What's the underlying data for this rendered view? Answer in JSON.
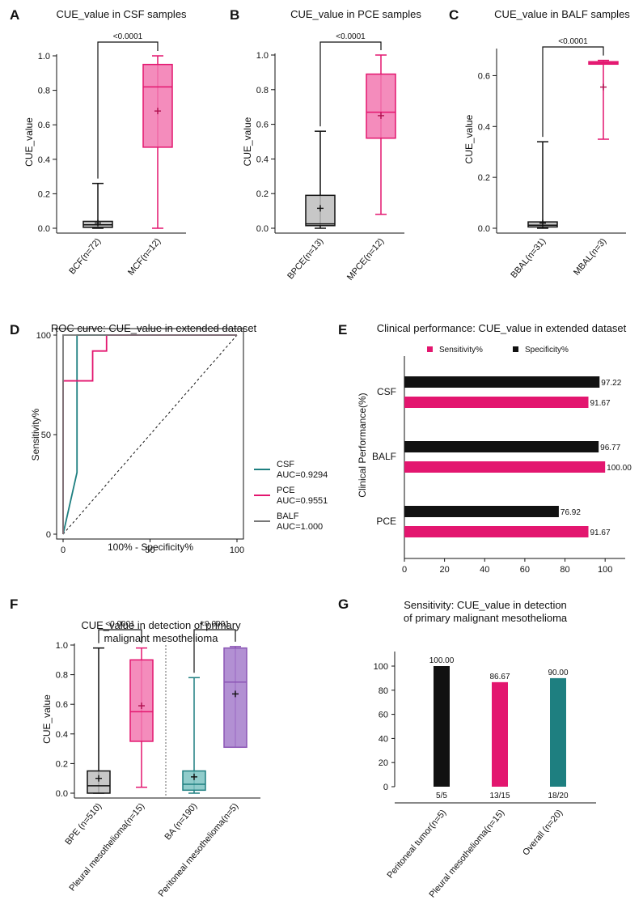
{
  "colors": {
    "pink": "#e3166f",
    "black": "#111111",
    "teal": "#1e7f80",
    "purple": "#8b55b5",
    "gray": "#777777",
    "pinkFill": "#f278b0",
    "purpleFill": "#a47ccb",
    "tealFill": "#7cc3c2"
  },
  "chart_data": [
    {
      "panel": "A",
      "type": "box",
      "title": "CUE_value in CSF samples",
      "ylabel": "CUE_value",
      "ylim": [
        0,
        1.0
      ],
      "yticks": [
        "0.0",
        "0.2",
        "0.4",
        "0.6",
        "0.8",
        "1.0"
      ],
      "categories": [
        "BCF(n=72)",
        "MCF(n=12)"
      ],
      "boxes": [
        {
          "min": 0,
          "q1": 0.005,
          "median": 0.02,
          "q3": 0.04,
          "max": 0.26,
          "mean": 0.03,
          "color": "black"
        },
        {
          "min": 0,
          "q1": 0.47,
          "median": 0.82,
          "q3": 0.95,
          "max": 1.0,
          "mean": 0.68,
          "color": "pink"
        }
      ],
      "sig": "<0.0001"
    },
    {
      "panel": "B",
      "type": "box",
      "title": "CUE_value in PCE samples",
      "ylabel": "CUE_value",
      "ylim": [
        0,
        1.0
      ],
      "yticks": [
        "0.0",
        "0.2",
        "0.4",
        "0.6",
        "0.8",
        "1.0"
      ],
      "categories": [
        "BPCE(n=13)",
        "MPCE(n=12)"
      ],
      "boxes": [
        {
          "min": 0,
          "q1": 0.015,
          "median": 0.025,
          "q3": 0.19,
          "max": 0.56,
          "mean": 0.115,
          "color": "black"
        },
        {
          "min": 0.08,
          "q1": 0.52,
          "median": 0.67,
          "q3": 0.89,
          "max": 1.0,
          "mean": 0.65,
          "color": "pink"
        }
      ],
      "sig": "<0.0001"
    },
    {
      "panel": "C",
      "type": "box",
      "title": "CUE_value in BALF samples",
      "ylabel": "CUE_value",
      "ylim": [
        0,
        0.7
      ],
      "yticks": [
        "0.0",
        "0.2",
        "0.4",
        "0.6"
      ],
      "categories": [
        "BBAL(n=31)",
        "MBAL(n=3)"
      ],
      "boxes": [
        {
          "min": 0,
          "q1": 0.005,
          "median": 0.012,
          "q3": 0.025,
          "max": 0.34,
          "mean": 0.02,
          "color": "black"
        },
        {
          "min": 0.35,
          "q1": 0.645,
          "median": 0.65,
          "q3": 0.655,
          "max": 0.66,
          "mean": 0.555,
          "color": "pink"
        }
      ],
      "sig": "<0.0001"
    },
    {
      "panel": "D",
      "type": "line",
      "title": "ROC curve: CUE_value in extended dataset",
      "xlabel": "100% - Specificity%",
      "ylabel": "Sensitivity%",
      "xlim": [
        0,
        100
      ],
      "ylim": [
        0,
        100
      ],
      "xticks": [
        "0",
        "50",
        "100"
      ],
      "yticks": [
        "0",
        "50",
        "100"
      ],
      "series": [
        {
          "name": "CSF",
          "auc": "AUC=0.9294",
          "color": "teal",
          "x": [
            0,
            8,
            8,
            8,
            100
          ],
          "y": [
            0,
            31,
            31,
            100,
            100
          ]
        },
        {
          "name": "PCE",
          "auc": "AUC=0.9551",
          "color": "pink",
          "x": [
            0,
            0,
            17,
            17,
            25,
            25,
            100
          ],
          "y": [
            0,
            77,
            77,
            92,
            92,
            100,
            100
          ]
        },
        {
          "name": "BALF",
          "auc": "AUC=1.000",
          "color": "gray",
          "x": [
            0,
            0,
            100
          ],
          "y": [
            0,
            100,
            100
          ]
        }
      ]
    },
    {
      "panel": "E",
      "type": "bar",
      "orientation": "horizontal",
      "title": "Clinical performance: CUE_value in extended dataset",
      "ylabel": "Clinical Performance(%)",
      "xlim": [
        0,
        110
      ],
      "xticks": [
        "0",
        "20",
        "40",
        "60",
        "80",
        "100"
      ],
      "categories": [
        "CSF",
        "BALF",
        "PCE"
      ],
      "series": [
        {
          "name": "Specificity%",
          "color": "black",
          "values": [
            97.22,
            96.77,
            76.92
          ],
          "labels": [
            "97.22",
            "96.77",
            "76.92"
          ]
        },
        {
          "name": "Sensitivity%",
          "color": "pink",
          "values": [
            91.67,
            100.0,
            91.67
          ],
          "labels": [
            "91.67",
            "100.00",
            "91.67"
          ]
        }
      ]
    },
    {
      "panel": "F",
      "type": "box",
      "title": "CUE_value in detection of primary",
      "title2": "malignant mesothelioma",
      "ylabel": "CUE_value",
      "ylim": [
        0,
        1.0
      ],
      "yticks": [
        "0.0",
        "0.2",
        "0.4",
        "0.6",
        "0.8",
        "1.0"
      ],
      "categories": [
        "BPE (n=510)",
        "Pleural mesothelioma(n=15)",
        "BA (n=190)",
        "Peritoneal mesothelioma(n=5)"
      ],
      "boxes": [
        {
          "min": 0,
          "q1": 0.0,
          "median": 0.05,
          "q3": 0.15,
          "max": 0.98,
          "mean": 0.1,
          "color": "black"
        },
        {
          "min": 0.04,
          "q1": 0.35,
          "median": 0.55,
          "q3": 0.9,
          "max": 0.98,
          "mean": 0.59,
          "color": "pink"
        },
        {
          "min": 0,
          "q1": 0.02,
          "median": 0.06,
          "q3": 0.15,
          "max": 0.78,
          "mean": 0.11,
          "color": "teal"
        },
        {
          "min": 0.31,
          "q1": 0.31,
          "median": 0.75,
          "q3": 0.98,
          "max": 0.99,
          "mean": 0.67,
          "color": "purple"
        }
      ],
      "sig": [
        "<0.0001",
        "<0.0001"
      ]
    },
    {
      "panel": "G",
      "type": "bar",
      "title": "Sensitivity: CUE_value in detection",
      "title2": "of primary malignant mesothelioma",
      "ylim": [
        0,
        110
      ],
      "yticks": [
        "0",
        "20",
        "40",
        "60",
        "80",
        "100"
      ],
      "categories": [
        "Peritoneal tumor(n=5)",
        "Pleural mesothelioma(n=15)",
        "Overall (n=20)"
      ],
      "values": [
        100.0,
        86.67,
        90.0
      ],
      "labels": [
        "100.00",
        "86.67",
        "90.00"
      ],
      "counts": [
        "5/5",
        "13/15",
        "18/20"
      ],
      "colors": [
        "black",
        "pink",
        "teal"
      ]
    }
  ]
}
